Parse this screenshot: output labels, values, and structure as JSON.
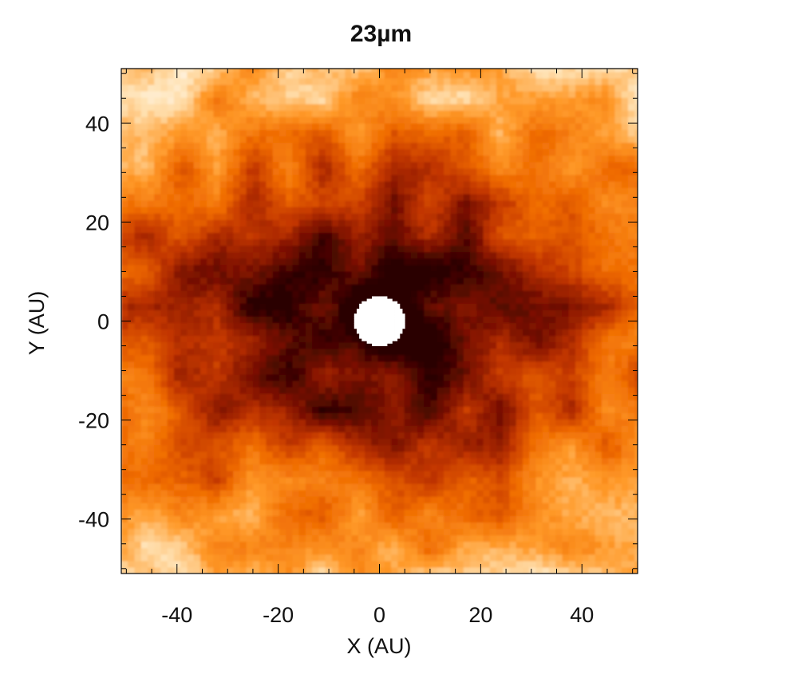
{
  "chart_data": {
    "type": "heatmap",
    "title": "23µm",
    "xlabel": "X (AU)",
    "ylabel": "Y (AU)",
    "xlim": [
      -51,
      51
    ],
    "ylim": [
      -51,
      51
    ],
    "x_ticks": [
      -40,
      -20,
      0,
      20,
      40
    ],
    "y_ticks": [
      -40,
      -20,
      0,
      20,
      40
    ],
    "x_tick_labels": [
      "-40",
      "-20",
      "0",
      "20",
      "40"
    ],
    "y_tick_labels": [
      "-40",
      "-20",
      "0",
      "20",
      "40"
    ],
    "colormap": [
      "#ffffff",
      "#ffe0b0",
      "#ff9a2a",
      "#ef6a00",
      "#c23600",
      "#7a1000",
      "#2a0000"
    ],
    "central_hole_radius_au": 5,
    "intensity_model": "elongated emission peaked at origin; ellipse semi-axes ~50 AU (x) by ~30 AU (y); clumpy outer halo fading to white at corners",
    "grid": false,
    "colorbar": false
  }
}
